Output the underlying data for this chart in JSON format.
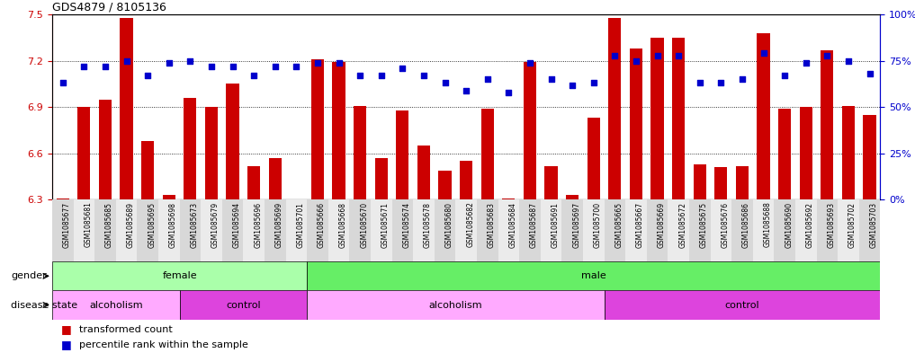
{
  "title": "GDS4879 / 8105136",
  "samples": [
    "GSM1085677",
    "GSM1085681",
    "GSM1085685",
    "GSM1085689",
    "GSM1085695",
    "GSM1085698",
    "GSM1085673",
    "GSM1085679",
    "GSM1085694",
    "GSM1085696",
    "GSM1085699",
    "GSM1085701",
    "GSM1085666",
    "GSM1085668",
    "GSM1085670",
    "GSM1085671",
    "GSM1085674",
    "GSM1085678",
    "GSM1085680",
    "GSM1085682",
    "GSM1085683",
    "GSM1085684",
    "GSM1085687",
    "GSM1085691",
    "GSM1085697",
    "GSM1085700",
    "GSM1085665",
    "GSM1085667",
    "GSM1085669",
    "GSM1085672",
    "GSM1085675",
    "GSM1085676",
    "GSM1085686",
    "GSM1085688",
    "GSM1085690",
    "GSM1085692",
    "GSM1085693",
    "GSM1085702",
    "GSM1085703"
  ],
  "bar_values": [
    6.31,
    6.9,
    6.95,
    7.48,
    6.68,
    6.33,
    6.96,
    6.9,
    7.05,
    6.52,
    6.57,
    6.3,
    7.21,
    7.19,
    6.91,
    6.57,
    6.88,
    6.65,
    6.49,
    6.55,
    6.89,
    6.31,
    7.19,
    6.52,
    6.33,
    6.83,
    7.48,
    7.28,
    7.35,
    7.35,
    6.53,
    6.51,
    6.52,
    7.38,
    6.89,
    6.9,
    7.27,
    6.91,
    6.85
  ],
  "percentile_values": [
    63,
    72,
    72,
    75,
    67,
    74,
    75,
    72,
    72,
    67,
    72,
    72,
    74,
    74,
    67,
    67,
    71,
    67,
    63,
    59,
    65,
    58,
    74,
    65,
    62,
    63,
    78,
    75,
    78,
    78,
    63,
    63,
    65,
    79,
    67,
    74,
    78,
    75,
    68
  ],
  "ylim_left": [
    6.3,
    7.5
  ],
  "ylim_right": [
    0,
    100
  ],
  "yticks_left": [
    6.3,
    6.6,
    6.9,
    7.2,
    7.5
  ],
  "yticks_right": [
    0,
    25,
    50,
    75,
    100
  ],
  "ytick_labels_right": [
    "0%",
    "25%",
    "50%",
    "75%",
    "100%"
  ],
  "bar_color": "#cc0000",
  "dot_color": "#0000cc",
  "bar_bottom": 6.3,
  "grid_lines": [
    6.6,
    6.9,
    7.2
  ],
  "gender_groups": [
    {
      "label": "female",
      "start": 0,
      "end": 12,
      "color": "#aaffaa"
    },
    {
      "label": "male",
      "start": 12,
      "end": 39,
      "color": "#66dd66"
    }
  ],
  "disease_groups": [
    {
      "label": "alcoholism",
      "start": 0,
      "end": 6,
      "color": "#ffaaff"
    },
    {
      "label": "control",
      "start": 6,
      "end": 12,
      "color": "#ee44ee"
    },
    {
      "label": "alcoholism",
      "start": 12,
      "end": 26,
      "color": "#ffaaff"
    },
    {
      "label": "control",
      "start": 26,
      "end": 39,
      "color": "#ee44ee"
    }
  ],
  "left_tick_color": "#cc0000",
  "right_tick_color": "#0000cc",
  "bg_color": "#ffffff"
}
